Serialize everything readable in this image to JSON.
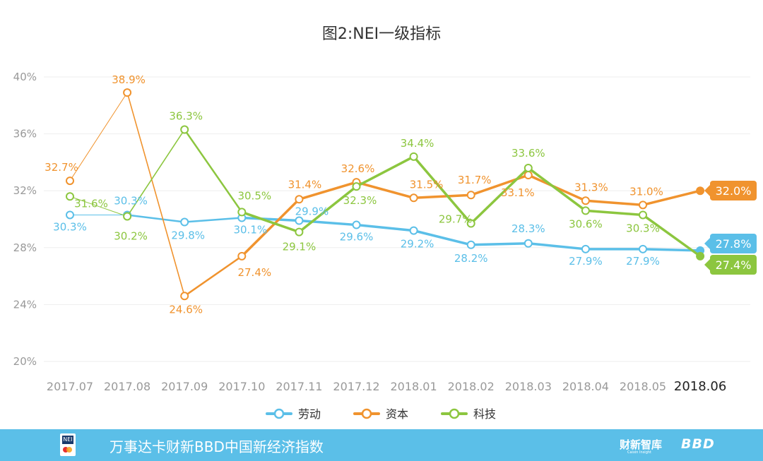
{
  "chart_data": {
    "type": "line",
    "title": "图2:NEI一级指标",
    "categories": [
      "2017.07",
      "2017.08",
      "2017.09",
      "2017.10",
      "2017.11",
      "2017.12",
      "2018.01",
      "2018.02",
      "2018.03",
      "2018.04",
      "2018.05",
      "2018.06"
    ],
    "y_ticks": [
      "40%",
      "36%",
      "32%",
      "28%",
      "24%",
      "20%"
    ],
    "ylim": [
      20,
      40
    ],
    "series": [
      {
        "name": "劳动",
        "color": "#5bbfe8",
        "values": [
          30.3,
          30.3,
          29.8,
          30.1,
          29.9,
          29.6,
          29.2,
          28.2,
          28.3,
          27.9,
          27.9,
          27.8
        ],
        "labels": [
          "30.3%",
          "30.3%",
          "29.8%",
          "30.1%",
          "29.9%",
          "29.6%",
          "29.2%",
          "28.2%",
          "28.3%",
          "27.9%",
          "27.9%",
          "27.8%"
        ]
      },
      {
        "name": "资本",
        "color": "#f0932e",
        "values": [
          32.7,
          38.9,
          24.6,
          27.4,
          31.4,
          32.6,
          31.5,
          31.7,
          33.1,
          31.3,
          31.0,
          32.0
        ],
        "labels": [
          "32.7%",
          "38.9%",
          "24.6%",
          "27.4%",
          "31.4%",
          "32.6%",
          "31.5%",
          "31.7%",
          "33.1%",
          "31.3%",
          "31.0%",
          "32.0%"
        ]
      },
      {
        "name": "科技",
        "color": "#8cc63f",
        "values": [
          31.6,
          30.2,
          36.3,
          30.5,
          29.1,
          32.3,
          34.4,
          29.7,
          33.6,
          30.6,
          30.3,
          27.4
        ],
        "labels": [
          "31.6%",
          "30.2%",
          "36.3%",
          "30.5%",
          "29.1%",
          "32.3%",
          "34.4%",
          "29.7%",
          "33.6%",
          "30.6%",
          "30.3%",
          "27.4%"
        ]
      }
    ],
    "legend": "bottom-center",
    "grid": true
  },
  "footer": {
    "title": "万事达卡财新BBD中国新经济指数",
    "logo_text": "NEI",
    "brand_1": "财新智库",
    "brand_1_sub": "Caixin Insight",
    "brand_2": "BBD"
  },
  "colors": {
    "footer_bg": "#5bbfe8",
    "grid": "#eeeeee",
    "axis_text": "#999999"
  }
}
